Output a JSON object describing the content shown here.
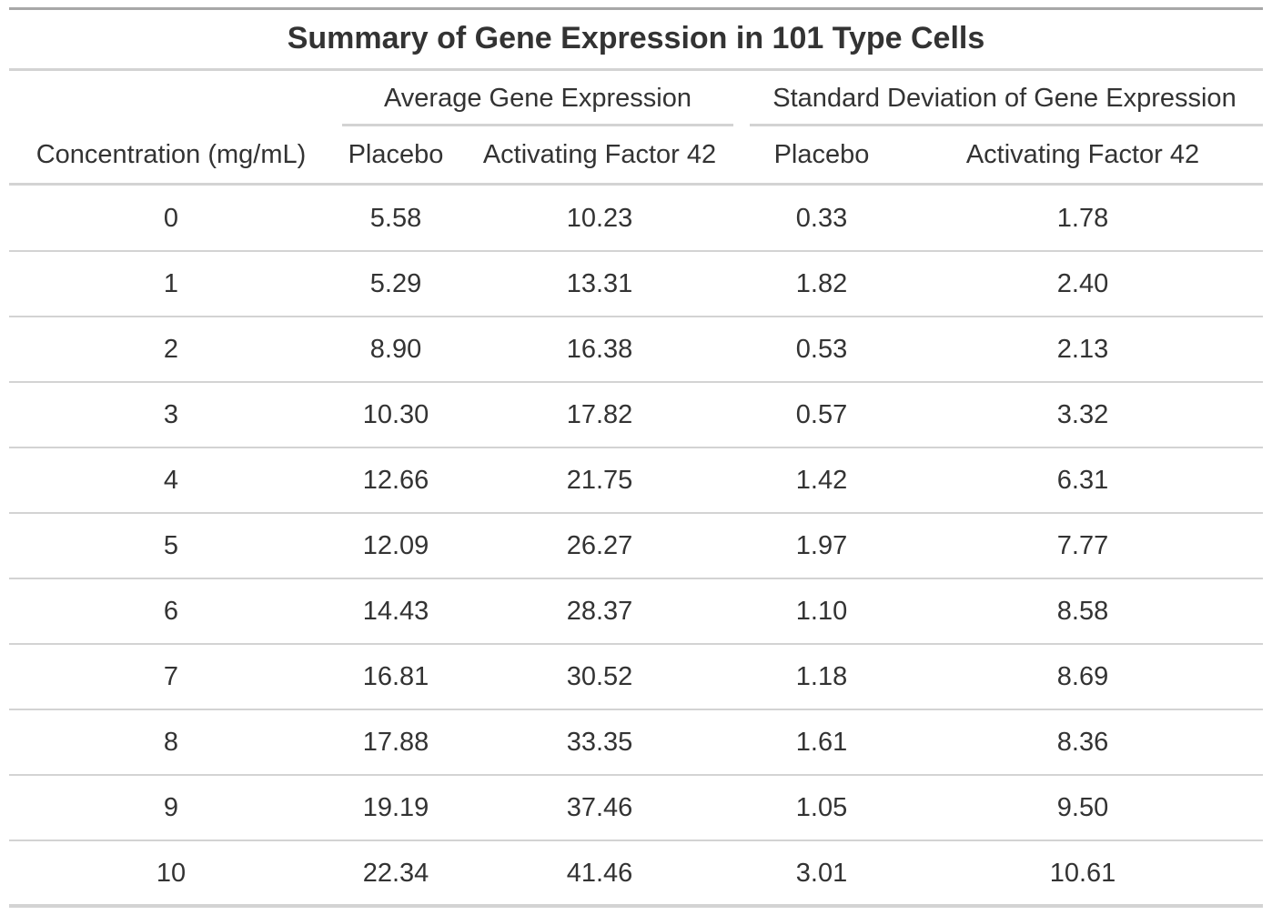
{
  "chart_data": {
    "type": "table",
    "title": "Summary of Gene Expression in 101 Type Cells",
    "spanners": [
      {
        "label": "Average Gene Expression",
        "columns": [
          "Placebo",
          "Activating Factor 42"
        ]
      },
      {
        "label": "Standard Deviation of Gene Expression",
        "columns": [
          "Placebo",
          "Activating Factor 42"
        ]
      }
    ],
    "columns": [
      "Concentration (mg/mL)",
      "Placebo",
      "Activating Factor 42",
      "Placebo",
      "Activating Factor 42"
    ],
    "rows": [
      [
        "0",
        "5.58",
        "10.23",
        "0.33",
        "1.78"
      ],
      [
        "1",
        "5.29",
        "13.31",
        "1.82",
        "2.40"
      ],
      [
        "2",
        "8.90",
        "16.38",
        "0.53",
        "2.13"
      ],
      [
        "3",
        "10.30",
        "17.82",
        "0.57",
        "3.32"
      ],
      [
        "4",
        "12.66",
        "21.75",
        "1.42",
        "6.31"
      ],
      [
        "5",
        "12.09",
        "26.27",
        "1.97",
        "7.77"
      ],
      [
        "6",
        "14.43",
        "28.37",
        "1.10",
        "8.58"
      ],
      [
        "7",
        "16.81",
        "30.52",
        "1.18",
        "8.69"
      ],
      [
        "8",
        "17.88",
        "33.35",
        "1.61",
        "8.36"
      ],
      [
        "9",
        "19.19",
        "37.46",
        "1.05",
        "9.50"
      ],
      [
        "10",
        "22.34",
        "41.46",
        "3.01",
        "10.61"
      ]
    ]
  }
}
